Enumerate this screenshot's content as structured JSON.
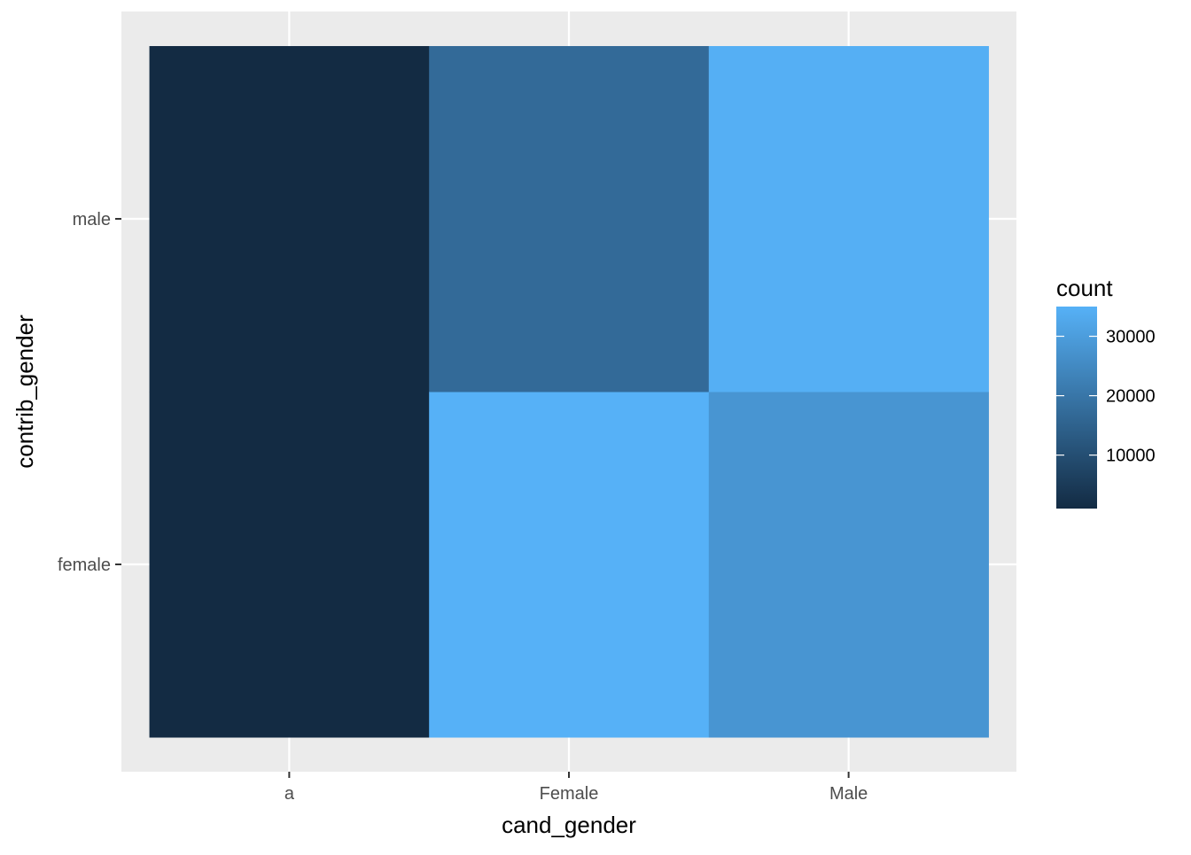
{
  "chart_data": {
    "type": "heatmap",
    "title": "",
    "xlabel": "cand_gender",
    "ylabel": "contrib_gender",
    "x_categories": [
      "a",
      "Female",
      "Male"
    ],
    "y_categories": [
      "female",
      "male"
    ],
    "cells": [
      {
        "x": "a",
        "y": "female",
        "value": 1000
      },
      {
        "x": "a",
        "y": "male",
        "value": 1000
      },
      {
        "x": "Female",
        "y": "female",
        "value": 35000
      },
      {
        "x": "Female",
        "y": "male",
        "value": 17000
      },
      {
        "x": "Male",
        "y": "female",
        "value": 28000
      },
      {
        "x": "Male",
        "y": "male",
        "value": 34500
      }
    ],
    "legend": {
      "title": "count",
      "placement": "right",
      "range": [
        1000,
        35000
      ],
      "breaks": [
        10000,
        20000,
        30000
      ],
      "break_labels": [
        "10000",
        "20000",
        "30000"
      ]
    },
    "colors": {
      "low": "#132B43",
      "high": "#56B1F7",
      "panel_background": "#EBEBEB",
      "grid_line": "#FFFFFF",
      "tick_color": "#333333"
    },
    "grid": true
  }
}
